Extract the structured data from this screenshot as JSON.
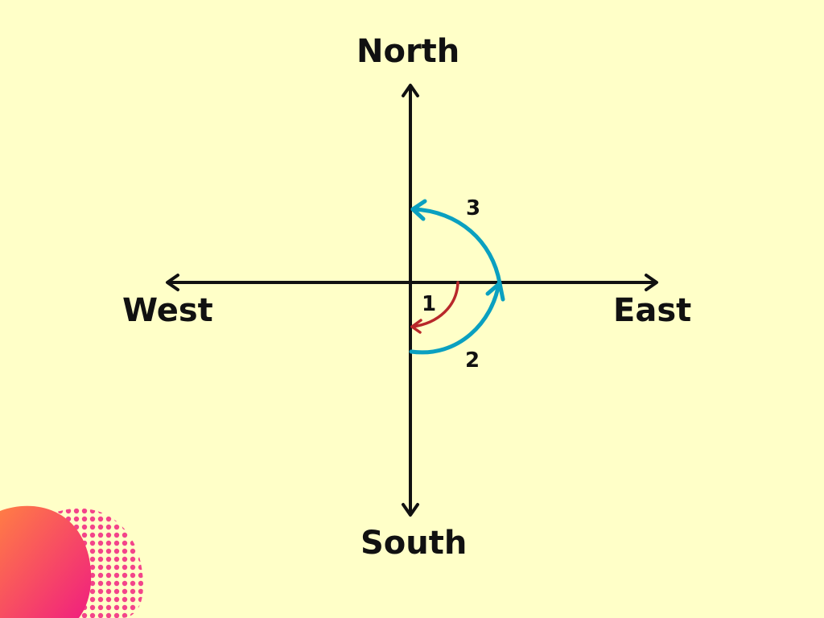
{
  "colors": {
    "background": "#ffffc8",
    "axis": "#111111",
    "arc_red": "#b8282a",
    "arc_blue": "#0aa0c0",
    "blob_pink": "#f0257d",
    "blob_orange": "#ff7a4a"
  },
  "directions": {
    "north": "North",
    "south": "South",
    "east": "East",
    "west": "West"
  },
  "arcs": [
    {
      "label": "1",
      "color": "red",
      "direction": "east-to-south"
    },
    {
      "label": "2",
      "color": "blue",
      "direction": "south-to-east"
    },
    {
      "label": "3",
      "color": "blue",
      "direction": "east-to-north"
    }
  ]
}
